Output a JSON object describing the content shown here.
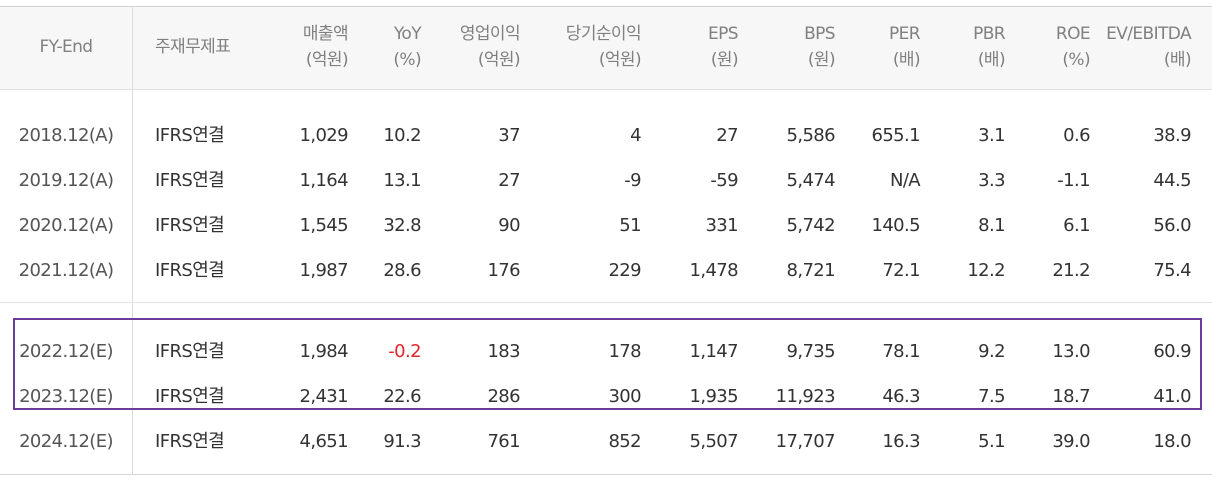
{
  "columns": [
    {
      "label": "FY-End",
      "unit": ""
    },
    {
      "label": "주재무제표",
      "unit": ""
    },
    {
      "label": "매출액",
      "unit": "(억원)"
    },
    {
      "label": "YoY",
      "unit": "(%)"
    },
    {
      "label": "영업이익",
      "unit": "(억원)"
    },
    {
      "label": "당기순이익",
      "unit": "(억원)"
    },
    {
      "label": "EPS",
      "unit": "(원)"
    },
    {
      "label": "BPS",
      "unit": "(원)"
    },
    {
      "label": "PER",
      "unit": "(배)"
    },
    {
      "label": "PBR",
      "unit": "(배)"
    },
    {
      "label": "ROE",
      "unit": "(%)"
    },
    {
      "label": "EV/EBITDA",
      "unit": "(배)"
    }
  ],
  "rows": [
    {
      "fy": "2018.12(A)",
      "basis": "IFRS연결",
      "sales": "1,029",
      "yoy": "10.2",
      "op": "37",
      "net": "4",
      "eps": "27",
      "bps": "5,586",
      "per": "655.1",
      "pbr": "3.1",
      "roe": "0.6",
      "ev": "38.9"
    },
    {
      "fy": "2019.12(A)",
      "basis": "IFRS연결",
      "sales": "1,164",
      "yoy": "13.1",
      "op": "27",
      "net": "-9",
      "eps": "-59",
      "bps": "5,474",
      "per": "N/A",
      "pbr": "3.3",
      "roe": "-1.1",
      "ev": "44.5"
    },
    {
      "fy": "2020.12(A)",
      "basis": "IFRS연결",
      "sales": "1,545",
      "yoy": "32.8",
      "op": "90",
      "net": "51",
      "eps": "331",
      "bps": "5,742",
      "per": "140.5",
      "pbr": "8.1",
      "roe": "6.1",
      "ev": "56.0"
    },
    {
      "fy": "2021.12(A)",
      "basis": "IFRS연결",
      "sales": "1,987",
      "yoy": "28.6",
      "op": "176",
      "net": "229",
      "eps": "1,478",
      "bps": "8,721",
      "per": "72.1",
      "pbr": "12.2",
      "roe": "21.2",
      "ev": "75.4"
    },
    {
      "fy": "2022.12(E)",
      "basis": "IFRS연결",
      "sales": "1,984",
      "yoy": "-0.2",
      "op": "183",
      "net": "178",
      "eps": "1,147",
      "bps": "9,735",
      "per": "78.1",
      "pbr": "9.2",
      "roe": "13.0",
      "ev": "60.9"
    },
    {
      "fy": "2023.12(E)",
      "basis": "IFRS연결",
      "sales": "2,431",
      "yoy": "22.6",
      "op": "286",
      "net": "300",
      "eps": "1,935",
      "bps": "11,923",
      "per": "46.3",
      "pbr": "7.5",
      "roe": "18.7",
      "ev": "41.0"
    },
    {
      "fy": "2024.12(E)",
      "basis": "IFRS연결",
      "sales": "4,651",
      "yoy": "91.3",
      "op": "761",
      "net": "852",
      "eps": "5,507",
      "bps": "17,707",
      "per": "16.3",
      "pbr": "5.1",
      "roe": "39.0",
      "ev": "18.0"
    }
  ],
  "colors": {
    "highlight_border": "#6a3c9c",
    "negative_yoy": "#e0262a"
  }
}
